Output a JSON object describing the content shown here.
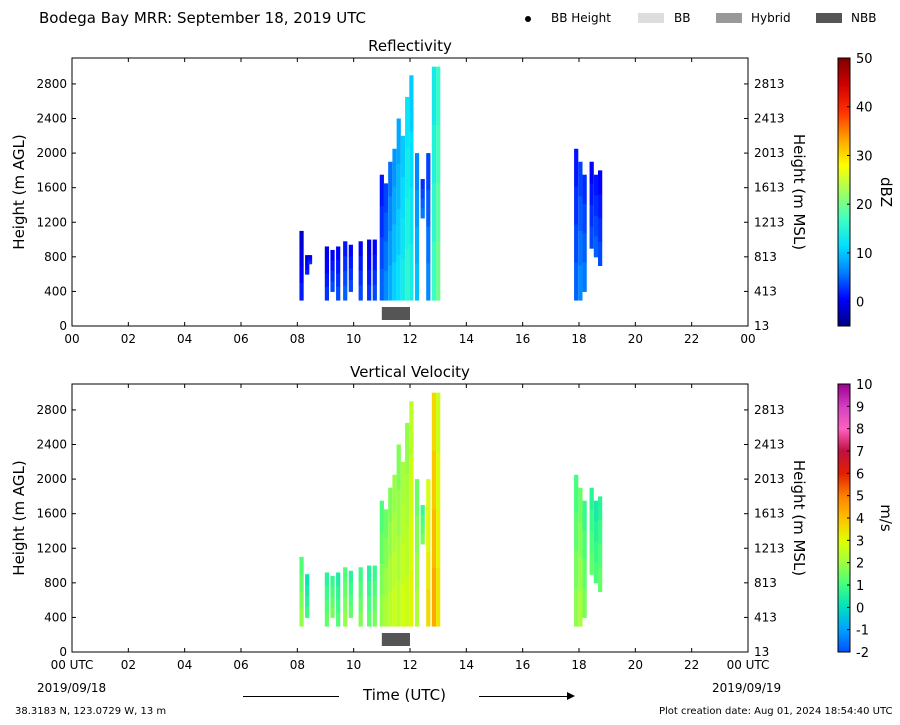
{
  "page_title": "Bodega Bay MRR:  September 18, 2019 UTC",
  "legend": [
    {
      "label": "BB Height",
      "marker": "dot",
      "color": "#000000"
    },
    {
      "label": "BB",
      "marker": "box",
      "color": "#dddddd"
    },
    {
      "label": "Hybrid",
      "marker": "box",
      "color": "#999999"
    },
    {
      "label": "NBB",
      "marker": "box",
      "color": "#555555"
    }
  ],
  "time_axis_label": "Time (UTC)",
  "start_date": "2019/09/18",
  "end_date": "2019/09/19",
  "location": "38.3183 N, 123.0729 W, 13 m",
  "creation": "Plot creation date: Aug 01, 2024 18:54:40 UTC",
  "chart_data": [
    {
      "type": "heatmap",
      "title": "Reflectivity",
      "ylabel": "Height (m AGL)",
      "y2label": "Height (m MSL)",
      "colorbar_label": "dBZ",
      "xlim": [
        0,
        24
      ],
      "ylim": [
        0,
        3100
      ],
      "x_ticks": [
        "00",
        "02",
        "04",
        "06",
        "08",
        "10",
        "12",
        "14",
        "16",
        "18",
        "20",
        "22",
        "00"
      ],
      "y_ticks": [
        0,
        400,
        800,
        1200,
        1600,
        2000,
        2400,
        2800
      ],
      "y2_ticks": [
        "13",
        "413",
        "813",
        "1213",
        "1613",
        "2013",
        "2413",
        "2813"
      ],
      "colorbar_range": [
        -5,
        50
      ],
      "colorbar_ticks": [
        "0",
        "10",
        "20",
        "30",
        "40",
        "50"
      ],
      "colorbar_tick_values": [
        0,
        10,
        20,
        30,
        40,
        50
      ],
      "colorbar_colors": [
        "#00007f",
        "#0000ff",
        "#0080ff",
        "#00e0ff",
        "#40ffbf",
        "#a0ff60",
        "#ffff00",
        "#ffa000",
        "#ff3000",
        "#d00000",
        "#800000"
      ],
      "nbb": [
        11.0,
        12.0
      ],
      "columns": [
        {
          "x": 8.15,
          "bottom": 300,
          "top": 1100,
          "value": 0
        },
        {
          "x": 8.35,
          "bottom": 600,
          "top": 820,
          "value": 0
        },
        {
          "x": 8.45,
          "bottom": 720,
          "top": 820,
          "value": 1
        },
        {
          "x": 9.05,
          "bottom": 300,
          "top": 920,
          "value": 1
        },
        {
          "x": 9.25,
          "bottom": 400,
          "top": 880,
          "value": 2
        },
        {
          "x": 9.45,
          "bottom": 300,
          "top": 920,
          "value": 2
        },
        {
          "x": 9.7,
          "bottom": 300,
          "top": 980,
          "value": 3
        },
        {
          "x": 9.9,
          "bottom": 400,
          "top": 940,
          "value": 2
        },
        {
          "x": 10.25,
          "bottom": 300,
          "top": 980,
          "value": 2
        },
        {
          "x": 10.55,
          "bottom": 300,
          "top": 1000,
          "value": 1
        },
        {
          "x": 10.75,
          "bottom": 300,
          "top": 1000,
          "value": 2
        },
        {
          "x": 11.0,
          "bottom": 300,
          "top": 1750,
          "value": 3
        },
        {
          "x": 11.15,
          "bottom": 300,
          "top": 1650,
          "value": 5
        },
        {
          "x": 11.3,
          "bottom": 300,
          "top": 1900,
          "value": 7
        },
        {
          "x": 11.45,
          "bottom": 300,
          "top": 2050,
          "value": 9
        },
        {
          "x": 11.6,
          "bottom": 300,
          "top": 2400,
          "value": 10
        },
        {
          "x": 11.75,
          "bottom": 300,
          "top": 2200,
          "value": 12
        },
        {
          "x": 11.9,
          "bottom": 300,
          "top": 2650,
          "value": 14
        },
        {
          "x": 12.05,
          "bottom": 300,
          "top": 2900,
          "value": 12
        },
        {
          "x": 12.25,
          "bottom": 300,
          "top": 2000,
          "value": 8
        },
        {
          "x": 12.45,
          "bottom": 1250,
          "top": 1700,
          "value": 4
        },
        {
          "x": 12.65,
          "bottom": 300,
          "top": 2000,
          "value": 5
        },
        {
          "x": 12.85,
          "bottom": 300,
          "top": 3000,
          "value": 15
        },
        {
          "x": 13.0,
          "bottom": 300,
          "top": 3000,
          "value": 18
        },
        {
          "x": 17.9,
          "bottom": 300,
          "top": 2050,
          "value": 3
        },
        {
          "x": 18.05,
          "bottom": 300,
          "top": 1900,
          "value": 5
        },
        {
          "x": 18.2,
          "bottom": 400,
          "top": 1750,
          "value": 4
        },
        {
          "x": 18.45,
          "bottom": 900,
          "top": 1900,
          "value": 2
        },
        {
          "x": 18.6,
          "bottom": 800,
          "top": 1750,
          "value": 3
        },
        {
          "x": 18.75,
          "bottom": 700,
          "top": 1800,
          "value": 2
        }
      ]
    },
    {
      "type": "heatmap",
      "title": "Vertical Velocity",
      "ylabel": "Height (m AGL)",
      "y2label": "Height (m MSL)",
      "colorbar_label": "m/s",
      "xlim": [
        0,
        24
      ],
      "ylim": [
        0,
        3100
      ],
      "x_ticks": [
        "00 UTC",
        "02",
        "04",
        "06",
        "08",
        "10",
        "12",
        "14",
        "16",
        "18",
        "20",
        "22",
        "00 UTC"
      ],
      "y_ticks": [
        0,
        400,
        800,
        1200,
        1600,
        2000,
        2400,
        2800
      ],
      "y2_ticks": [
        "13",
        "413",
        "813",
        "1213",
        "1613",
        "2013",
        "2413",
        "2813"
      ],
      "colorbar_range": [
        -2,
        10
      ],
      "colorbar_ticks": [
        "-2",
        "-1",
        "0",
        "1",
        "2",
        "3",
        "4",
        "5",
        "6",
        "7",
        "8",
        "9",
        "10"
      ],
      "colorbar_tick_values": [
        -2,
        -1,
        0,
        1,
        2,
        3,
        4,
        5,
        6,
        7,
        8,
        9,
        10
      ],
      "colorbar_colors": [
        "#0050ff",
        "#00a0ff",
        "#00e0c0",
        "#40ff80",
        "#a0ff40",
        "#e0ff00",
        "#ffc000",
        "#ff8000",
        "#e02000",
        "#c01040",
        "#ff60c0",
        "#d040c0",
        "#a0008f"
      ],
      "nbb": [
        11.0,
        12.0
      ],
      "columns": [
        {
          "x": 8.15,
          "bottom": 300,
          "top": 1100,
          "value": 1.5
        },
        {
          "x": 8.35,
          "bottom": 400,
          "top": 900,
          "value": 0.5
        },
        {
          "x": 9.05,
          "bottom": 300,
          "top": 920,
          "value": 1.0
        },
        {
          "x": 9.25,
          "bottom": 400,
          "top": 880,
          "value": 1.2
        },
        {
          "x": 9.45,
          "bottom": 300,
          "top": 920,
          "value": 0.8
        },
        {
          "x": 9.7,
          "bottom": 300,
          "top": 980,
          "value": 1.5
        },
        {
          "x": 9.9,
          "bottom": 400,
          "top": 940,
          "value": 1.0
        },
        {
          "x": 10.25,
          "bottom": 300,
          "top": 980,
          "value": 1.3
        },
        {
          "x": 10.55,
          "bottom": 300,
          "top": 1000,
          "value": 0.9
        },
        {
          "x": 10.75,
          "bottom": 300,
          "top": 1000,
          "value": 1.2
        },
        {
          "x": 11.0,
          "bottom": 300,
          "top": 1750,
          "value": 1.5
        },
        {
          "x": 11.15,
          "bottom": 300,
          "top": 1650,
          "value": 1.8
        },
        {
          "x": 11.3,
          "bottom": 300,
          "top": 1900,
          "value": 2.0
        },
        {
          "x": 11.45,
          "bottom": 300,
          "top": 2050,
          "value": 2.3
        },
        {
          "x": 11.6,
          "bottom": 300,
          "top": 2400,
          "value": 2.0
        },
        {
          "x": 11.75,
          "bottom": 300,
          "top": 2200,
          "value": 2.5
        },
        {
          "x": 11.9,
          "bottom": 300,
          "top": 2650,
          "value": 2.2
        },
        {
          "x": 12.05,
          "bottom": 300,
          "top": 2900,
          "value": 2.8
        },
        {
          "x": 12.25,
          "bottom": 300,
          "top": 2000,
          "value": 1.8
        },
        {
          "x": 12.45,
          "bottom": 1250,
          "top": 1700,
          "value": 1.2
        },
        {
          "x": 12.65,
          "bottom": 300,
          "top": 2000,
          "value": 3.2
        },
        {
          "x": 12.85,
          "bottom": 300,
          "top": 3000,
          "value": 4.0
        },
        {
          "x": 13.0,
          "bottom": 300,
          "top": 3000,
          "value": 3.0
        },
        {
          "x": 17.9,
          "bottom": 300,
          "top": 2050,
          "value": 1.4
        },
        {
          "x": 18.05,
          "bottom": 300,
          "top": 1900,
          "value": 1.8
        },
        {
          "x": 18.2,
          "bottom": 400,
          "top": 1750,
          "value": 1.2
        },
        {
          "x": 18.45,
          "bottom": 900,
          "top": 1900,
          "value": 1.0
        },
        {
          "x": 18.6,
          "bottom": 800,
          "top": 1750,
          "value": 0.7
        },
        {
          "x": 18.75,
          "bottom": 700,
          "top": 1800,
          "value": 1.0
        }
      ]
    }
  ]
}
